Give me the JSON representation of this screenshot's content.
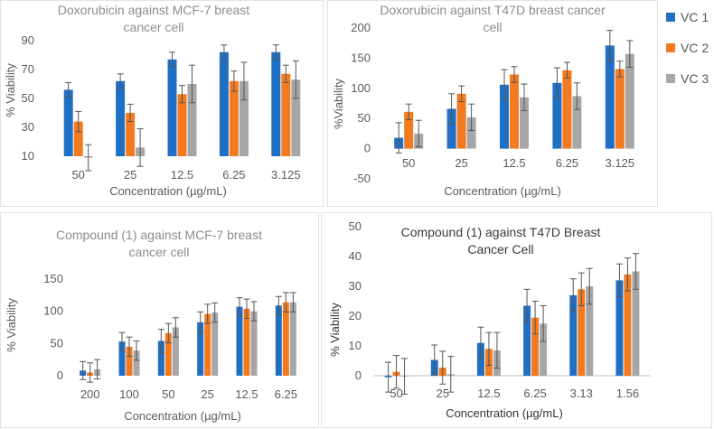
{
  "legend": [
    {
      "name": "VC 1",
      "color": "#1f6fc4"
    },
    {
      "name": "VC 2",
      "color": "#f47a20"
    },
    {
      "name": "VC 3",
      "color": "#a6a6a6"
    }
  ],
  "chart_data": [
    {
      "type": "bar",
      "title_lines": [
        "Doxorubicin against MCF-7 breast",
        "cancer cell"
      ],
      "xlabel": "Concentration (µg/mL)",
      "ylabel": "% Viability",
      "categories": [
        "50",
        "25",
        "12.5",
        "6.25",
        "3.125"
      ],
      "ylim": [
        10,
        90
      ],
      "yticks": [
        10,
        30,
        50,
        70,
        90
      ],
      "series": [
        {
          "name": "VC 1",
          "values": [
            56,
            62,
            77,
            82,
            82
          ],
          "errors": [
            5,
            5,
            5,
            5,
            5
          ]
        },
        {
          "name": "VC 2",
          "values": [
            34,
            40,
            53,
            62,
            67
          ],
          "errors": [
            7,
            6,
            6,
            7,
            6
          ]
        },
        {
          "name": "VC 3",
          "values": [
            9,
            16,
            60,
            62,
            63
          ],
          "errors": [
            9,
            13,
            13,
            13,
            13
          ]
        }
      ]
    },
    {
      "type": "bar",
      "title_lines": [
        "Doxorubicin against T47D breast cancer",
        "cell"
      ],
      "xlabel": "Concentration (µg/mL)",
      "ylabel": "%Viability",
      "categories": [
        "50",
        "25",
        "12.5",
        "6.25",
        "3.125"
      ],
      "ylim": [
        -50,
        200
      ],
      "yticks": [
        -50,
        0,
        50,
        100,
        150,
        200
      ],
      "series": [
        {
          "name": "VC 1",
          "values": [
            18,
            66,
            106,
            109,
            171
          ],
          "errors": [
            25,
            25,
            25,
            25,
            25
          ]
        },
        {
          "name": "VC 2",
          "values": [
            61,
            91,
            123,
            130,
            132
          ],
          "errors": [
            13,
            13,
            13,
            13,
            13
          ]
        },
        {
          "name": "VC 3",
          "values": [
            25,
            52,
            85,
            87,
            157
          ],
          "errors": [
            22,
            22,
            22,
            22,
            22
          ]
        }
      ]
    },
    {
      "type": "bar",
      "title_lines": [
        "Compound (1) against MCF-7 breast",
        "cancer cell"
      ],
      "xlabel": "Concentration (µg/mL)",
      "ylabel": "% Viability",
      "categories": [
        "200",
        "100",
        "50",
        "25",
        "12.5",
        "6.25"
      ],
      "ylim": [
        0,
        150
      ],
      "yticks": [
        0,
        50,
        100,
        150
      ],
      "series": [
        {
          "name": "VC 1",
          "values": [
            8,
            53,
            54,
            83,
            107,
            109
          ],
          "errors": [
            14,
            14,
            18,
            16,
            14,
            14
          ]
        },
        {
          "name": "VC 2",
          "values": [
            5,
            45,
            66,
            96,
            104,
            114
          ],
          "errors": [
            15,
            15,
            15,
            15,
            15,
            15
          ]
        },
        {
          "name": "VC 3",
          "values": [
            10,
            39,
            75,
            98,
            100,
            114
          ],
          "errors": [
            15,
            15,
            15,
            15,
            15,
            15
          ]
        }
      ]
    },
    {
      "type": "bar",
      "title_lines": [
        "Compound (1) against T47D Breast",
        "Cancer Cell"
      ],
      "xlabel": "Concentration (µg/mL)",
      "ylabel": "% Viability",
      "categories": [
        "50",
        "25",
        "12.5",
        "6.25",
        "3.13",
        "1.56"
      ],
      "ylim": [
        -10,
        50
      ],
      "yticks": [
        0,
        10,
        20,
        30,
        40,
        50
      ],
      "series": [
        {
          "name": "VC 1",
          "values": [
            -0.5,
            5.3,
            11,
            23.5,
            27,
            32
          ],
          "errors": [
            5,
            5,
            5.3,
            5.5,
            5.5,
            5.5
          ]
        },
        {
          "name": "VC 2",
          "values": [
            1.3,
            2.7,
            9,
            19.5,
            29,
            34
          ],
          "errors": [
            5.5,
            5.5,
            5.5,
            5.5,
            5.5,
            5.5
          ]
        },
        {
          "name": "VC 3",
          "values": [
            -0.2,
            0.5,
            8.5,
            17.5,
            30,
            35
          ],
          "errors": [
            6,
            6,
            6,
            6,
            6,
            6
          ]
        }
      ]
    }
  ]
}
